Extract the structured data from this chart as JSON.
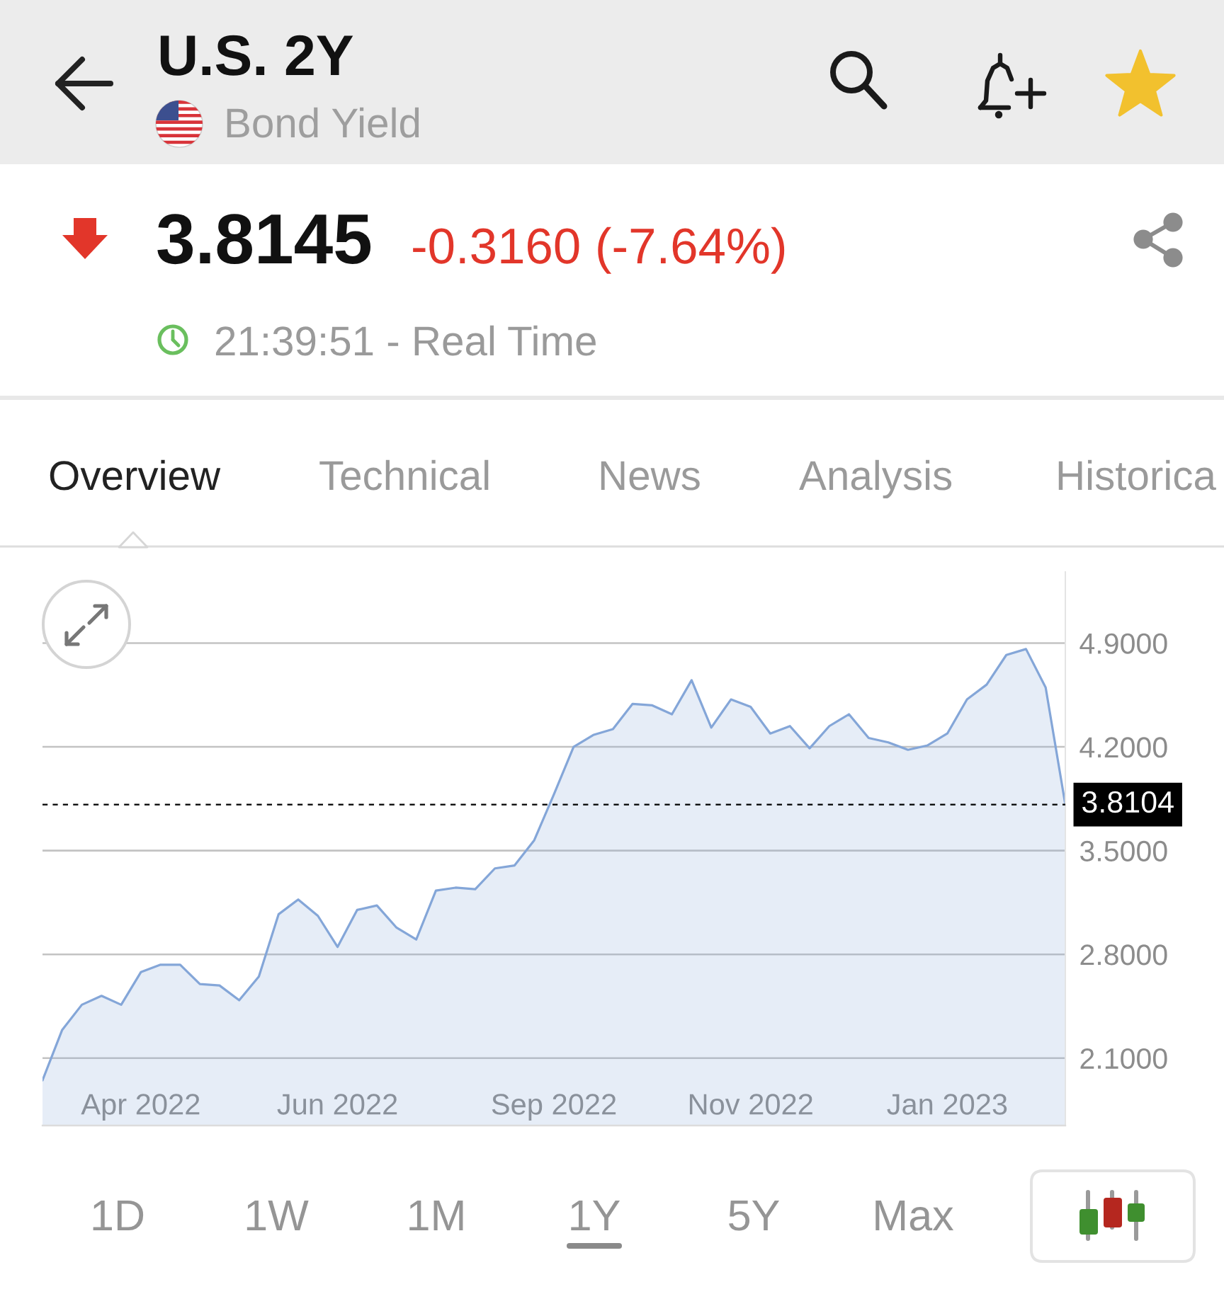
{
  "chart_data": {
    "type": "area",
    "title": "U.S. 2Y",
    "subtitle": "Bond Yield",
    "categories": [
      null,
      null,
      null,
      null,
      null,
      "Apr 2022",
      null,
      null,
      null,
      null,
      null,
      null,
      null,
      null,
      null,
      "Jun 2022",
      null,
      null,
      null,
      null,
      null,
      null,
      null,
      null,
      null,
      null,
      "Sep 2022",
      null,
      null,
      null,
      null,
      null,
      null,
      null,
      null,
      null,
      "Nov 2022",
      null,
      null,
      null,
      null,
      null,
      null,
      null,
      null,
      null,
      "Jan 2023",
      null,
      null,
      null,
      null,
      null,
      null
    ],
    "series": [
      {
        "color": "#84a6d8",
        "values": [
          1.95,
          2.29,
          2.46,
          2.52,
          2.46,
          2.68,
          2.73,
          2.73,
          2.6,
          2.59,
          2.49,
          2.65,
          3.07,
          3.17,
          3.06,
          2.85,
          3.1,
          3.13,
          2.98,
          2.9,
          3.23,
          3.25,
          3.24,
          3.38,
          3.4,
          3.57,
          3.88,
          4.2,
          4.28,
          4.32,
          4.49,
          4.48,
          4.42,
          4.65,
          4.33,
          4.52,
          4.47,
          4.29,
          4.34,
          4.19,
          4.34,
          4.42,
          4.26,
          4.23,
          4.18,
          4.21,
          4.29,
          4.52,
          4.62,
          4.82,
          4.86,
          4.6,
          3.81
        ]
      }
    ],
    "ylim": [
      1.645,
      5.38
    ],
    "yticks": [
      {
        "value": 2.1,
        "label": "2.1000"
      },
      {
        "value": 2.8,
        "label": "2.8000"
      },
      {
        "value": 3.5,
        "label": "3.5000"
      },
      {
        "value": 4.2,
        "label": "4.2000"
      },
      {
        "value": 4.9,
        "label": "4.9000"
      }
    ],
    "grid": "y",
    "ref_lines": [
      {
        "axis": "y",
        "value": 3.8104,
        "label": "3.8104",
        "color": "#000000",
        "line_style": "dashed"
      }
    ],
    "annotations": [
      "3.8145",
      "-0.3160 (-7.64%)",
      "21:39:51 - Real Time",
      "Overview",
      "Technical",
      "News",
      "Analysis",
      "Historica",
      "1D",
      "1W",
      "1M",
      "1Y",
      "5Y",
      "Max"
    ]
  }
}
